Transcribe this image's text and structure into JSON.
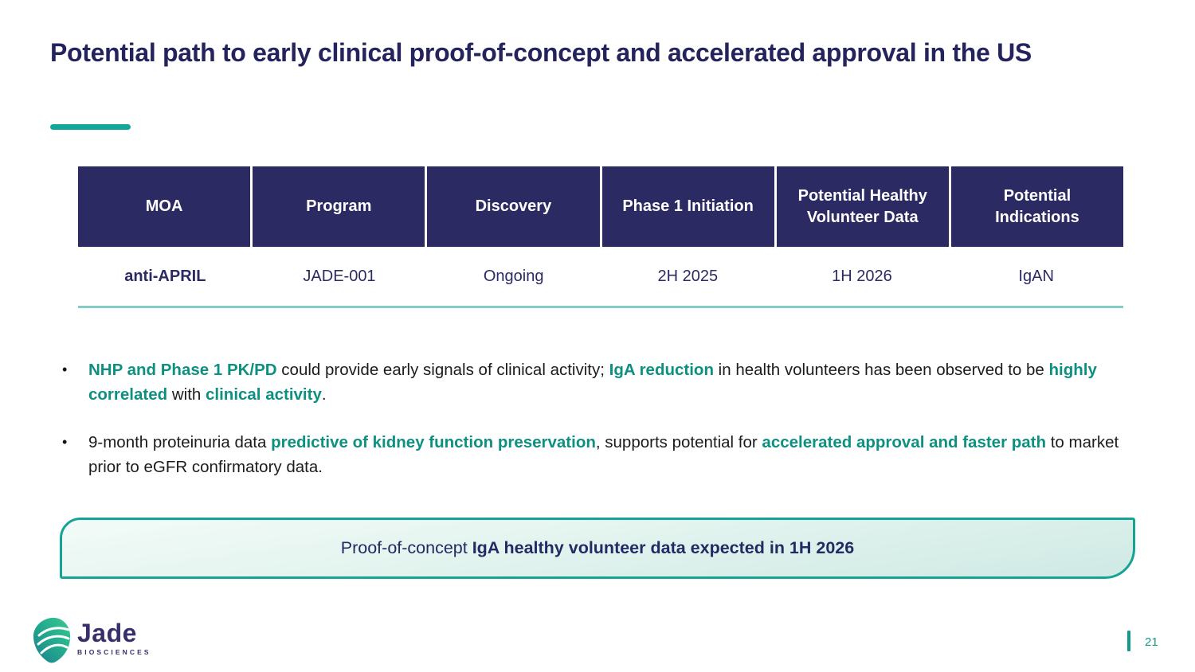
{
  "slide": {
    "title": "Potential path to early clinical proof-of-concept and accelerated approval in the US"
  },
  "table": {
    "headers": [
      "MOA",
      "Program",
      "Discovery",
      "Phase 1 Initiation",
      "Potential Healthy Volunteer Data",
      "Potential Indications"
    ],
    "rows": [
      [
        "anti-APRIL",
        "JADE-001",
        "Ongoing",
        "2H 2025",
        "1H 2026",
        "IgAN"
      ]
    ]
  },
  "bullets": [
    {
      "segments": [
        {
          "text": "NHP and Phase 1 PK/PD",
          "highlight": true
        },
        {
          "text": " could provide early signals of clinical activity; ",
          "highlight": false
        },
        {
          "text": "IgA reduction",
          "highlight": true
        },
        {
          "text": " in health volunteers has been observed to be ",
          "highlight": false
        },
        {
          "text": "highly correlated",
          "highlight": true
        },
        {
          "text": " with ",
          "highlight": false
        },
        {
          "text": "clinical activity",
          "highlight": true
        },
        {
          "text": ".",
          "highlight": false
        }
      ]
    },
    {
      "segments": [
        {
          "text": "9-month proteinuria data ",
          "highlight": false
        },
        {
          "text": "predictive of kidney function preservation",
          "highlight": true
        },
        {
          "text": ", supports potential for ",
          "highlight": false
        },
        {
          "text": "accelerated approval and faster path",
          "highlight": true
        },
        {
          "text": " to market prior to eGFR confirmatory data.",
          "highlight": false
        }
      ]
    }
  ],
  "callout": {
    "regular": "Proof-of-concept ",
    "bold": "IgA healthy volunteer data expected in 1H 2026"
  },
  "footer": {
    "logo_name": "Jade",
    "logo_subtitle": "BIOSCIENCES",
    "page_number": "21"
  },
  "icons": {
    "logo": "jade-leaf-icon"
  },
  "colors": {
    "title_navy": "#24235c",
    "table_header_navy": "#2b2a63",
    "teal_accent": "#12a796",
    "teal_highlight_text": "#0e9080",
    "table_rule_teal": "#85ccc5",
    "callout_border": "#14a395",
    "callout_fill_top": "#f3fbf8",
    "callout_fill_bottom": "#cfe9e4",
    "page_number_teal": "#13998b",
    "logo_navy": "#362f6c"
  }
}
